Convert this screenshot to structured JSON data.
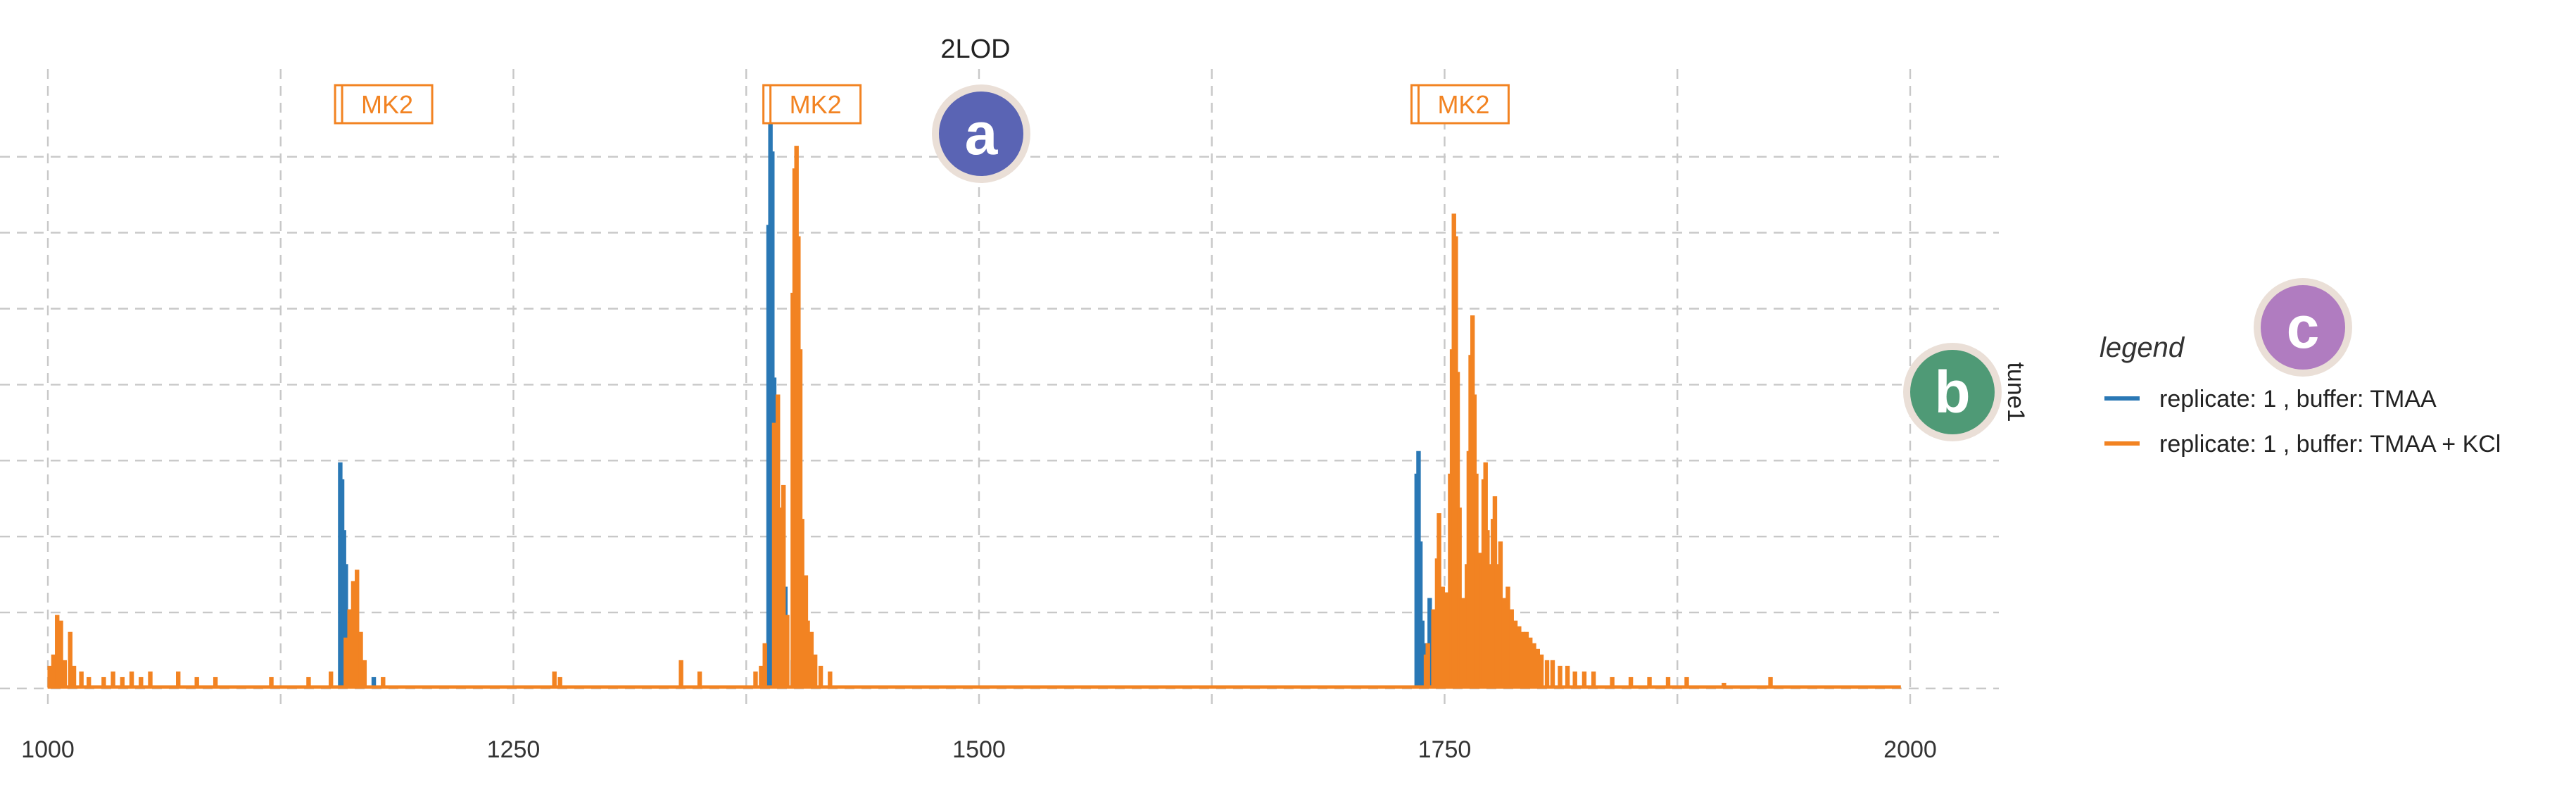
{
  "chart_data": {
    "type": "bar",
    "title": "2LOD",
    "xlim": [
      1000,
      2000
    ],
    "x_ticks": [
      "1000",
      "1250",
      "1500",
      "1750",
      "2000"
    ],
    "facet_label": "tune1",
    "grid": true,
    "legend": {
      "title": "legend",
      "placement": "right",
      "items": [
        {
          "label": "replicate: 1 , buffer: TMAA",
          "color": "#2a78b5"
        },
        {
          "label": "replicate: 1 , buffer: TMAA + KCl",
          "color": "#f28322"
        }
      ]
    },
    "peak_markers": [
      {
        "label": "MK2",
        "x": 1158
      },
      {
        "label": "MK2",
        "x": 1388
      },
      {
        "label": "MK2",
        "x": 1736
      }
    ],
    "series": [
      {
        "name": "replicate: 1 , buffer: TMAA",
        "color": "#2a78b5",
        "points": [
          [
            1157,
            0.4
          ],
          [
            1158,
            0.37
          ],
          [
            1159,
            0.28
          ],
          [
            1160,
            0.22
          ],
          [
            1170,
            0.04
          ],
          [
            1175,
            0.02
          ],
          [
            1387,
            0.82
          ],
          [
            1388,
            1.0
          ],
          [
            1389,
            0.95
          ],
          [
            1390,
            0.55
          ],
          [
            1391,
            0.3
          ],
          [
            1392,
            0.1
          ],
          [
            1396,
            0.18
          ],
          [
            1400,
            0.05
          ],
          [
            1735,
            0.38
          ],
          [
            1736,
            0.42
          ],
          [
            1737,
            0.26
          ],
          [
            1738,
            0.12
          ],
          [
            1740,
            0.08
          ],
          [
            1742,
            0.16
          ],
          [
            1745,
            0.05
          ]
        ]
      },
      {
        "name": "replicate: 1 , buffer: TMAA + KCl",
        "color": "#f28322",
        "points": [
          [
            1001,
            0.04
          ],
          [
            1003,
            0.06
          ],
          [
            1005,
            0.13
          ],
          [
            1007,
            0.12
          ],
          [
            1009,
            0.05
          ],
          [
            1012,
            0.1
          ],
          [
            1014,
            0.04
          ],
          [
            1018,
            0.03
          ],
          [
            1022,
            0.02
          ],
          [
            1030,
            0.02
          ],
          [
            1035,
            0.03
          ],
          [
            1040,
            0.02
          ],
          [
            1045,
            0.03
          ],
          [
            1050,
            0.02
          ],
          [
            1055,
            0.03
          ],
          [
            1070,
            0.03
          ],
          [
            1080,
            0.02
          ],
          [
            1090,
            0.02
          ],
          [
            1120,
            0.02
          ],
          [
            1140,
            0.02
          ],
          [
            1152,
            0.03
          ],
          [
            1160,
            0.09
          ],
          [
            1162,
            0.14
          ],
          [
            1164,
            0.19
          ],
          [
            1166,
            0.21
          ],
          [
            1168,
            0.1
          ],
          [
            1170,
            0.05
          ],
          [
            1180,
            0.02
          ],
          [
            1272,
            0.03
          ],
          [
            1275,
            0.02
          ],
          [
            1340,
            0.05
          ],
          [
            1350,
            0.03
          ],
          [
            1380,
            0.03
          ],
          [
            1383,
            0.04
          ],
          [
            1385,
            0.08
          ],
          [
            1390,
            0.47
          ],
          [
            1392,
            0.52
          ],
          [
            1393,
            0.32
          ],
          [
            1395,
            0.36
          ],
          [
            1397,
            0.13
          ],
          [
            1400,
            0.7
          ],
          [
            1401,
            0.92
          ],
          [
            1402,
            0.96
          ],
          [
            1403,
            0.8
          ],
          [
            1404,
            0.6
          ],
          [
            1405,
            0.3
          ],
          [
            1407,
            0.2
          ],
          [
            1408,
            0.12
          ],
          [
            1410,
            0.1
          ],
          [
            1412,
            0.06
          ],
          [
            1415,
            0.04
          ],
          [
            1420,
            0.03
          ],
          [
            1740,
            0.06
          ],
          [
            1741,
            0.08
          ],
          [
            1744,
            0.14
          ],
          [
            1746,
            0.23
          ],
          [
            1747,
            0.31
          ],
          [
            1749,
            0.18
          ],
          [
            1751,
            0.17
          ],
          [
            1753,
            0.38
          ],
          [
            1754,
            0.6
          ],
          [
            1755,
            0.84
          ],
          [
            1756,
            0.8
          ],
          [
            1757,
            0.56
          ],
          [
            1758,
            0.32
          ],
          [
            1759,
            0.16
          ],
          [
            1761,
            0.16
          ],
          [
            1762,
            0.22
          ],
          [
            1763,
            0.42
          ],
          [
            1764,
            0.59
          ],
          [
            1765,
            0.66
          ],
          [
            1766,
            0.52
          ],
          [
            1767,
            0.38
          ],
          [
            1769,
            0.24
          ],
          [
            1770,
            0.22
          ],
          [
            1771,
            0.37
          ],
          [
            1772,
            0.4
          ],
          [
            1773,
            0.28
          ],
          [
            1775,
            0.22
          ],
          [
            1776,
            0.3
          ],
          [
            1777,
            0.34
          ],
          [
            1778,
            0.22
          ],
          [
            1780,
            0.26
          ],
          [
            1782,
            0.16
          ],
          [
            1784,
            0.18
          ],
          [
            1786,
            0.14
          ],
          [
            1788,
            0.12
          ],
          [
            1790,
            0.11
          ],
          [
            1792,
            0.1
          ],
          [
            1794,
            0.1
          ],
          [
            1796,
            0.09
          ],
          [
            1798,
            0.08
          ],
          [
            1800,
            0.07
          ],
          [
            1802,
            0.06
          ],
          [
            1805,
            0.05
          ],
          [
            1808,
            0.05
          ],
          [
            1812,
            0.04
          ],
          [
            1816,
            0.04
          ],
          [
            1820,
            0.03
          ],
          [
            1825,
            0.03
          ],
          [
            1830,
            0.03
          ],
          [
            1840,
            0.02
          ],
          [
            1850,
            0.02
          ],
          [
            1860,
            0.02
          ],
          [
            1870,
            0.02
          ],
          [
            1880,
            0.02
          ],
          [
            1900,
            0.01
          ],
          [
            1925,
            0.02
          ]
        ]
      }
    ]
  },
  "annotations": [
    {
      "letter": "a",
      "color": "#5a64b4"
    },
    {
      "letter": "b",
      "color": "#4f9a76"
    },
    {
      "letter": "c",
      "color": "#b07cc0"
    }
  ]
}
